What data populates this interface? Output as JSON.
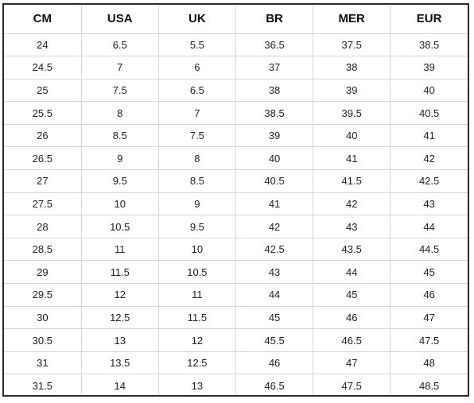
{
  "table": {
    "headers": [
      "CM",
      "USA",
      "UK",
      "BR",
      "MER",
      "EUR"
    ],
    "rows": [
      [
        "24",
        "6.5",
        "5.5",
        "36.5",
        "37.5",
        "38.5"
      ],
      [
        "24.5",
        "7",
        "6",
        "37",
        "38",
        "39"
      ],
      [
        "25",
        "7.5",
        "6.5",
        "38",
        "39",
        "40"
      ],
      [
        "25.5",
        "8",
        "7",
        "38.5",
        "39.5",
        "40.5"
      ],
      [
        "26",
        "8.5",
        "7.5",
        "39",
        "40",
        "41"
      ],
      [
        "26.5",
        "9",
        "8",
        "40",
        "41",
        "42"
      ],
      [
        "27",
        "9.5",
        "8.5",
        "40.5",
        "41.5",
        "42.5"
      ],
      [
        "27.5",
        "10",
        "9",
        "41",
        "42",
        "43"
      ],
      [
        "28",
        "10.5",
        "9.5",
        "42",
        "43",
        "44"
      ],
      [
        "28.5",
        "11",
        "10",
        "42.5",
        "43.5",
        "44.5"
      ],
      [
        "29",
        "11.5",
        "10.5",
        "43",
        "44",
        "45"
      ],
      [
        "29.5",
        "12",
        "11",
        "44",
        "45",
        "46"
      ],
      [
        "30",
        "12.5",
        "11.5",
        "45",
        "46",
        "47"
      ],
      [
        "30.5",
        "13",
        "12",
        "45.5",
        "46.5",
        "47.5"
      ],
      [
        "31",
        "13.5",
        "12.5",
        "46",
        "47",
        "48"
      ],
      [
        "31.5",
        "14",
        "13",
        "46.5",
        "47.5",
        "48.5"
      ]
    ]
  }
}
